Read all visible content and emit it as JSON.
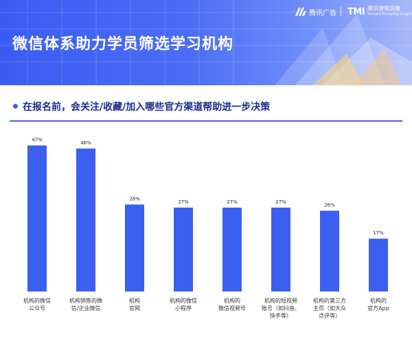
{
  "header": {
    "title": "微信体系助力学员筛选学习机构",
    "brand_ad": "腾讯广告",
    "brand_tmi_mark": "TMI",
    "brand_tmi_cn": "腾讯营销洞察",
    "brand_tmi_en": "Tencent Marketing Insight"
  },
  "section": {
    "title": "在报名前，会关注/收藏/加入哪些官方渠道帮助进一步决策"
  },
  "colors": {
    "bar": "#3b5ff0",
    "header_start": "#3a5cf2",
    "header_end": "#a9b8fa",
    "section_title": "#1a2a8a"
  },
  "chart_data": {
    "type": "bar",
    "title": "在报名前，会关注/收藏/加入哪些官方渠道帮助进一步决策",
    "categories": [
      "机构的微信公众号",
      "机构销售的微信/企业微信",
      "机构官网",
      "机构的微信小程序",
      "机构的微信视频号",
      "机构的短视频账号（如抖音、快手等）",
      "机构的第三方主页（如大众点评等）",
      "机构的官方App"
    ],
    "category_lines": [
      [
        "机构的微信",
        "公众号"
      ],
      [
        "机构销售的微",
        "信/企业微信"
      ],
      [
        "机构",
        "官网"
      ],
      [
        "机构的微信",
        "小程序"
      ],
      [
        "机构的",
        "微信视频号"
      ],
      [
        "机构的短视频",
        "账号（如抖音、",
        "快手等）"
      ],
      [
        "机构的第三方",
        "主页（如大众",
        "点评等）"
      ],
      [
        "机构的",
        "官方App"
      ]
    ],
    "values": [
      47,
      46,
      28,
      27,
      27,
      27,
      26,
      17
    ],
    "value_labels": [
      "47%",
      "46%",
      "28%",
      "27%",
      "27%",
      "27%",
      "26%",
      "17%"
    ],
    "unit": "%",
    "ylim": [
      0,
      50
    ],
    "grid": false,
    "legend": "none"
  }
}
